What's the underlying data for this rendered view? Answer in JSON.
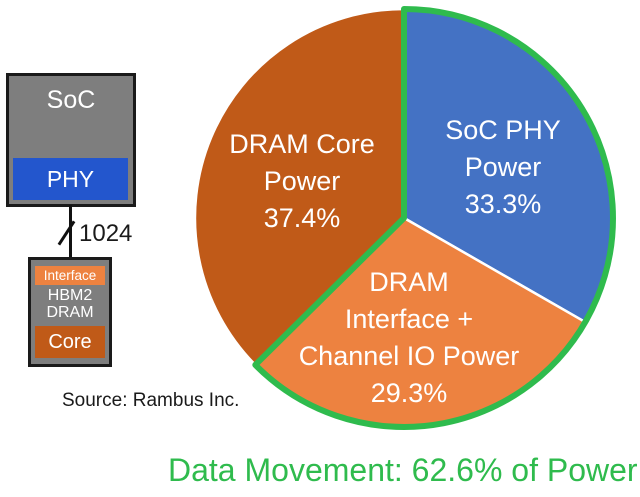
{
  "diagram": {
    "soc_label": "SoC",
    "phy_label": "PHY",
    "bus_label": "1024",
    "hbm_interface_label": "Interface",
    "hbm_name": "HBM2\nDRAM",
    "hbm_core_label": "Core",
    "source_text": "Source: Rambus Inc."
  },
  "chart_data": {
    "type": "pie",
    "title": "",
    "start_at": "top",
    "direction": "clockwise",
    "label_color": "#FFFFFF",
    "slices": [
      {
        "id": "soc-phy",
        "label": "SoC PHY Power",
        "value": 33.3,
        "color": "#4472C4",
        "display": "SoC PHY\nPower\n33.3%"
      },
      {
        "id": "dram-interface",
        "label": "DRAM Interface + Channel IO Power",
        "value": 29.3,
        "color": "#ED8240",
        "display": "DRAM\nInterface +\nChannel IO Power\n29.3%"
      },
      {
        "id": "dram-core",
        "label": "DRAM Core Power",
        "value": 37.4,
        "color": "#C05A18",
        "display": "DRAM Core\nPower\n37.4%"
      }
    ],
    "highlight_outline": {
      "slice_ids": [
        "soc-phy",
        "dram-interface"
      ],
      "total_pct": 62.6,
      "color": "#2FBB4D"
    }
  },
  "caption": {
    "text": "Data Movement: 62.6% of Power",
    "color": "#2FBB4D"
  }
}
